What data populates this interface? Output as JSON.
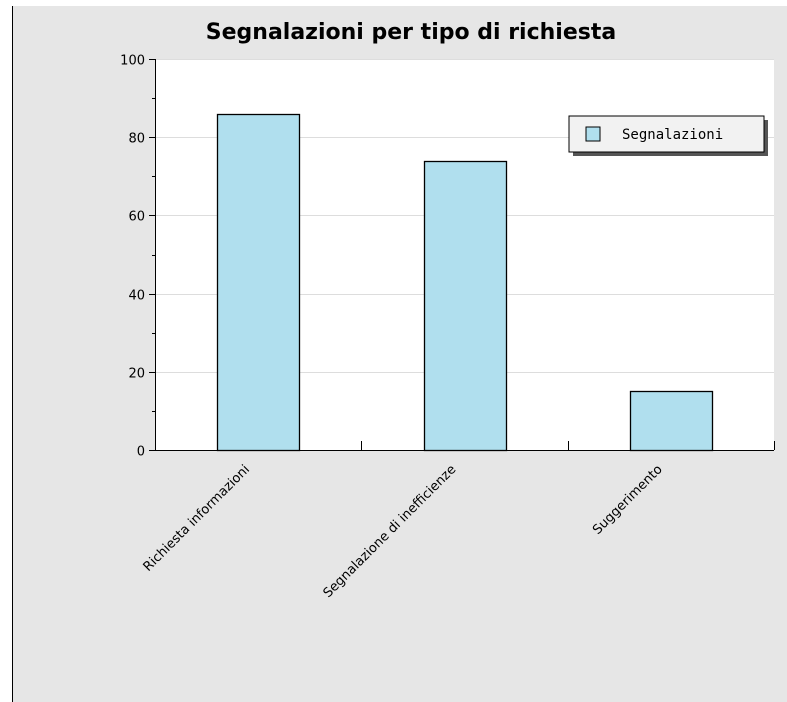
{
  "colors": {
    "page_background": "#e6e6e6",
    "plot_background": "#ffffff",
    "bar_fill": "#b0dfee",
    "bar_stroke": "#000000",
    "grid": "#dddddd",
    "legend_background": "#f2f2f2",
    "legend_shadow": "#555555"
  },
  "chart_data": {
    "type": "bar",
    "title": "Segnalazioni per tipo di richiesta",
    "xlabel": "",
    "ylabel": "",
    "categories": [
      "Richiesta informazioni",
      "Segnalazione di inefficienze",
      "Suggerimento"
    ],
    "series": [
      {
        "name": "Segnalazioni",
        "values": [
          86,
          74,
          15
        ]
      }
    ],
    "ylim": [
      0,
      100
    ],
    "yticks": [
      0,
      20,
      40,
      60,
      80,
      100
    ],
    "grid": true,
    "legend_position": "top-right"
  }
}
